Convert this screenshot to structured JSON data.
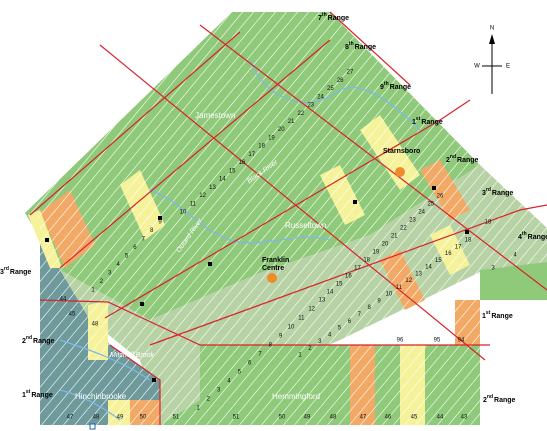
{
  "map": {
    "range_labels": [
      {
        "number": "7",
        "suffix": "th",
        "word": "Range"
      },
      {
        "number": "8",
        "suffix": "th",
        "word": "Range"
      },
      {
        "number": "9",
        "suffix": "th",
        "word": "Range"
      },
      {
        "number": "1",
        "suffix": "st",
        "word": "Range"
      },
      {
        "number": "2",
        "suffix": "nd",
        "word": "Range"
      },
      {
        "number": "3",
        "suffix": "rd",
        "word": "Range"
      },
      {
        "number": "4",
        "suffix": "th",
        "word": "Range"
      },
      {
        "number": "3",
        "suffix": "rd",
        "word": "Range"
      },
      {
        "number": "2",
        "suffix": "nd",
        "word": "Range"
      },
      {
        "number": "1",
        "suffix": "st",
        "word": "Range"
      },
      {
        "number": "1",
        "suffix": "st",
        "word": "Range"
      },
      {
        "number": "2",
        "suffix": "nd",
        "word": "Range"
      }
    ],
    "places": [
      "Jamestown",
      "Russeltown",
      "Hemmingford",
      "Hinchinbrooke"
    ],
    "franklin_centre": [
      "Franklin",
      "Centre"
    ],
    "starnsboro": "Starnsboro",
    "rivers": [
      "Black River",
      "Outard River",
      "Mitchell Brook"
    ],
    "compass": {
      "n": "N",
      "w": "W",
      "e": "E"
    },
    "lot_rows": [
      [
        "10",
        "11",
        "12",
        "13",
        "14",
        "15",
        "16",
        "17",
        "18",
        "19",
        "20",
        "21",
        "22",
        "23",
        "24",
        "25",
        "26",
        "27"
      ],
      [
        "1",
        "2",
        "3",
        "4",
        "5",
        "6",
        "7",
        "8",
        "9"
      ],
      [
        "1",
        "2",
        "3",
        "4",
        "5",
        "6",
        "7",
        "8",
        "9",
        "10",
        "11",
        "12",
        "13"
      ],
      [
        "14",
        "15",
        "16",
        "17",
        "18",
        "19",
        "20",
        "21",
        "22",
        "23",
        "24",
        "25",
        "26"
      ],
      [
        "1",
        "2",
        "3",
        "4",
        "5",
        "6",
        "7",
        "8",
        "9",
        "10",
        "11",
        "12",
        "13",
        "14",
        "15",
        "16",
        "17",
        "18"
      ]
    ],
    "lot_labels": [
      "44",
      "45",
      "48",
      "47",
      "48",
      "49",
      "50",
      "51",
      "51",
      "50",
      "49",
      "48",
      "47",
      "46",
      "45",
      "44",
      "43",
      "96",
      "95",
      "94",
      "18",
      "4",
      "3"
    ]
  }
}
